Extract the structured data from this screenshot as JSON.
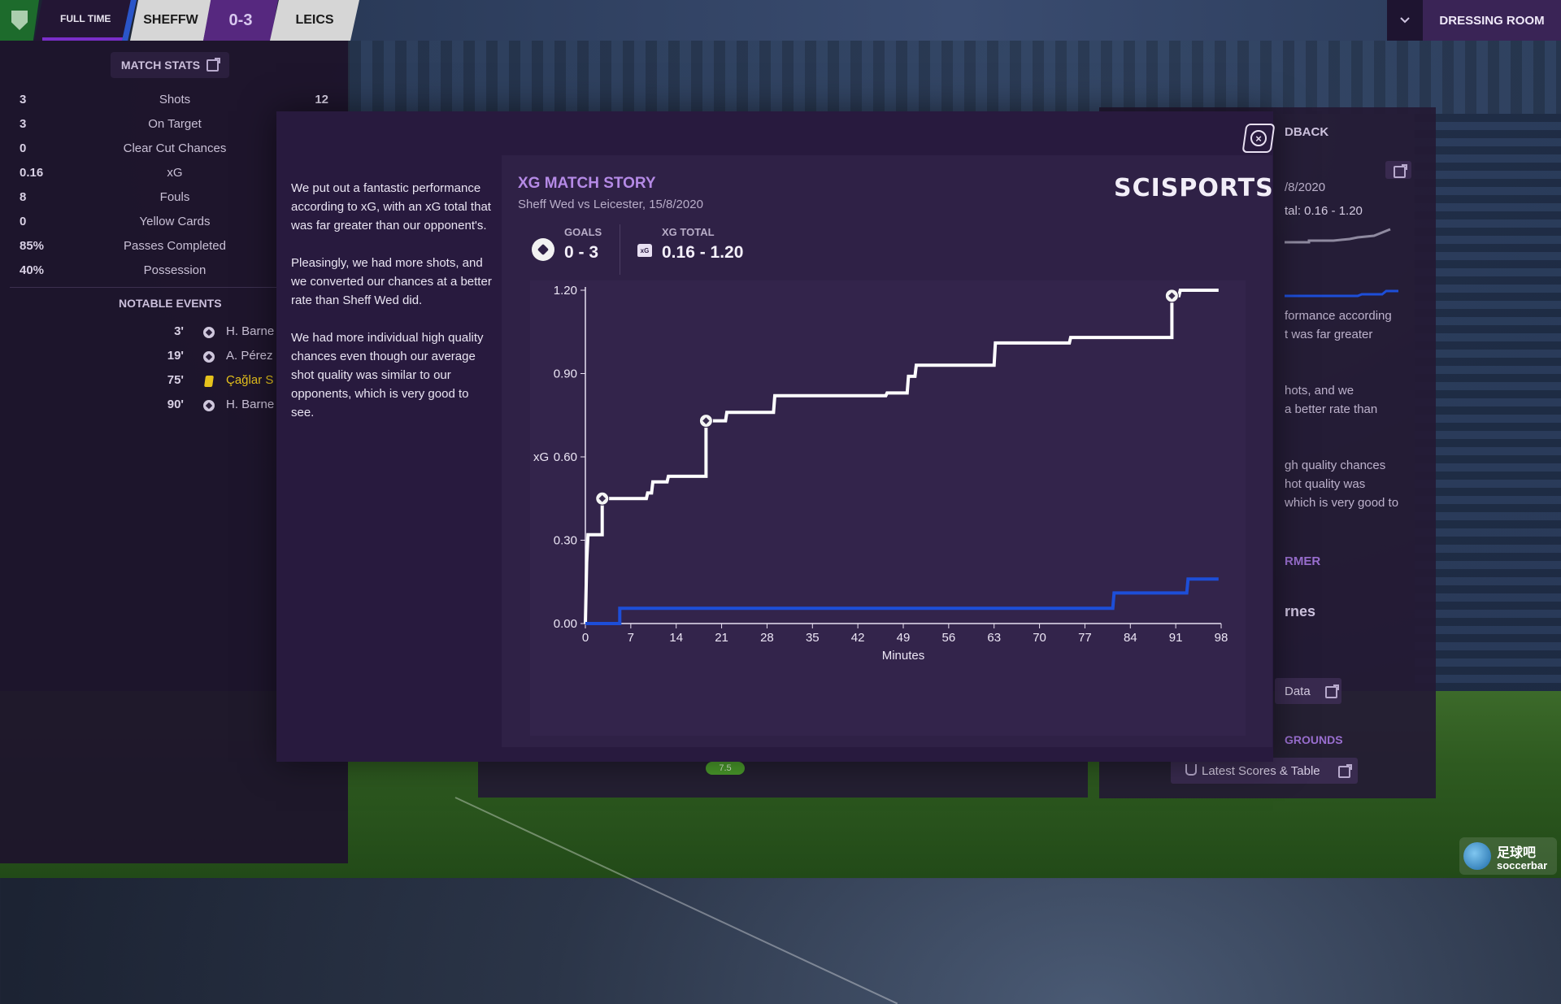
{
  "topbar": {
    "status": "FULL TIME",
    "home_team": "SHEFFW",
    "score": "0-3",
    "away_team": "LEICS",
    "dressing_room": "DRESSING ROOM",
    "accent_purple": "#56287f"
  },
  "match_stats": {
    "title": "MATCH STATS",
    "rows": [
      {
        "home": "3",
        "label": "Shots",
        "away": "12"
      },
      {
        "home": "3",
        "label": "On Target",
        "away": ""
      },
      {
        "home": "0",
        "label": "Clear Cut Chances",
        "away": ""
      },
      {
        "home": "0.16",
        "label": "xG",
        "away": ""
      },
      {
        "home": "8",
        "label": "Fouls",
        "away": ""
      },
      {
        "home": "0",
        "label": "Yellow Cards",
        "away": ""
      },
      {
        "home": "85%",
        "label": "Passes Completed",
        "away": ""
      },
      {
        "home": "40%",
        "label": "Possession",
        "away": ""
      }
    ]
  },
  "notable_events": {
    "title": "NOTABLE EVENTS",
    "items": [
      {
        "minute": "3'",
        "icon": "goal-icon",
        "player": "H. Barne"
      },
      {
        "minute": "19'",
        "icon": "goal-icon",
        "player": "A. Pérez"
      },
      {
        "minute": "75'",
        "icon": "yellow-card-icon",
        "player": "Çağlar S"
      },
      {
        "minute": "90'",
        "icon": "goal-icon",
        "player": "H. Barne"
      }
    ]
  },
  "background_right": {
    "header": "DBACK",
    "date": "/8/2020",
    "xg_total": "tal: 0.16 - 1.20",
    "lines": [
      "formance according",
      "t was far greater",
      "hots, and we",
      "a better rate than",
      "gh quality chances",
      "hot quality was",
      "which is very good to"
    ],
    "performer_header": "RMER",
    "performer_name": "rnes",
    "data_button": "Data",
    "grounds_header": "GROUNDS",
    "latest_scores": "Latest Scores & Table",
    "rating_badge": "7.5"
  },
  "modal": {
    "paragraphs": [
      "We put out a fantastic performance according to xG, with an xG total that was far greater than our opponent's.",
      "Pleasingly, we had more shots, and we converted our chances at a better rate than Sheff Wed did.",
      "We had more individual high quality chances even though our average shot quality was similar to our opponents, which is very good to see."
    ],
    "card": {
      "title": "XG MATCH STORY",
      "subtitle": "Sheff Wed vs Leicester, 15/8/2020",
      "brand": "SCISPORTS",
      "goals_label": "GOALS",
      "goals_value": "0 - 3",
      "xg_label": "XG TOTAL",
      "xg_value": "0.16 - 1.20"
    }
  },
  "watermark": {
    "line1": "足球吧",
    "line2": "soccerbar"
  },
  "chart_data": {
    "type": "line",
    "xlabel": "Minutes",
    "ylabel": "xG",
    "x_ticks": [
      0,
      7,
      14,
      21,
      28,
      35,
      42,
      49,
      56,
      63,
      70,
      77,
      84,
      91,
      98
    ],
    "y_ticks": [
      "0.00",
      "0.30",
      "0.60",
      "0.90",
      "1.20"
    ],
    "xlim": [
      0,
      98
    ],
    "ylim": [
      0,
      1.2
    ],
    "grid": false,
    "series": [
      {
        "color": "#ffffff",
        "step": true,
        "points": [
          [
            0,
            0
          ],
          [
            0.2,
            0.22
          ],
          [
            0.4,
            0.32
          ],
          [
            2.6,
            0.32
          ],
          [
            2.6,
            0.45
          ],
          [
            2.9,
            0.45
          ],
          [
            9.4,
            0.45
          ],
          [
            9.6,
            0.47
          ],
          [
            10.2,
            0.47
          ],
          [
            10.4,
            0.51
          ],
          [
            12.6,
            0.51
          ],
          [
            12.8,
            0.53
          ],
          [
            18.6,
            0.53
          ],
          [
            18.6,
            0.73
          ],
          [
            21.6,
            0.73
          ],
          [
            21.8,
            0.76
          ],
          [
            29,
            0.76
          ],
          [
            29.2,
            0.82
          ],
          [
            46.3,
            0.82
          ],
          [
            46.5,
            0.83
          ],
          [
            49.6,
            0.83
          ],
          [
            49.8,
            0.89
          ],
          [
            50.8,
            0.89
          ],
          [
            51,
            0.93
          ],
          [
            63,
            0.93
          ],
          [
            63.2,
            1.01
          ],
          [
            74.6,
            1.01
          ],
          [
            74.8,
            1.03
          ],
          [
            90.4,
            1.03
          ],
          [
            90.4,
            1.18
          ],
          [
            91.5,
            1.18
          ],
          [
            91.7,
            1.2
          ],
          [
            97.6,
            1.2
          ]
        ]
      },
      {
        "color": "#1d4ed8",
        "step": true,
        "points": [
          [
            0,
            0
          ],
          [
            5.3,
            0
          ],
          [
            5.3,
            0.055
          ],
          [
            81.3,
            0.055
          ],
          [
            81.5,
            0.11
          ],
          [
            92.7,
            0.11
          ],
          [
            92.9,
            0.16
          ],
          [
            97.6,
            0.16
          ]
        ]
      }
    ],
    "goal_markers": [
      {
        "series": 0,
        "x": 2.6,
        "y": 0.45
      },
      {
        "series": 0,
        "x": 18.6,
        "y": 0.73
      },
      {
        "series": 0,
        "x": 90.4,
        "y": 1.18
      }
    ]
  }
}
